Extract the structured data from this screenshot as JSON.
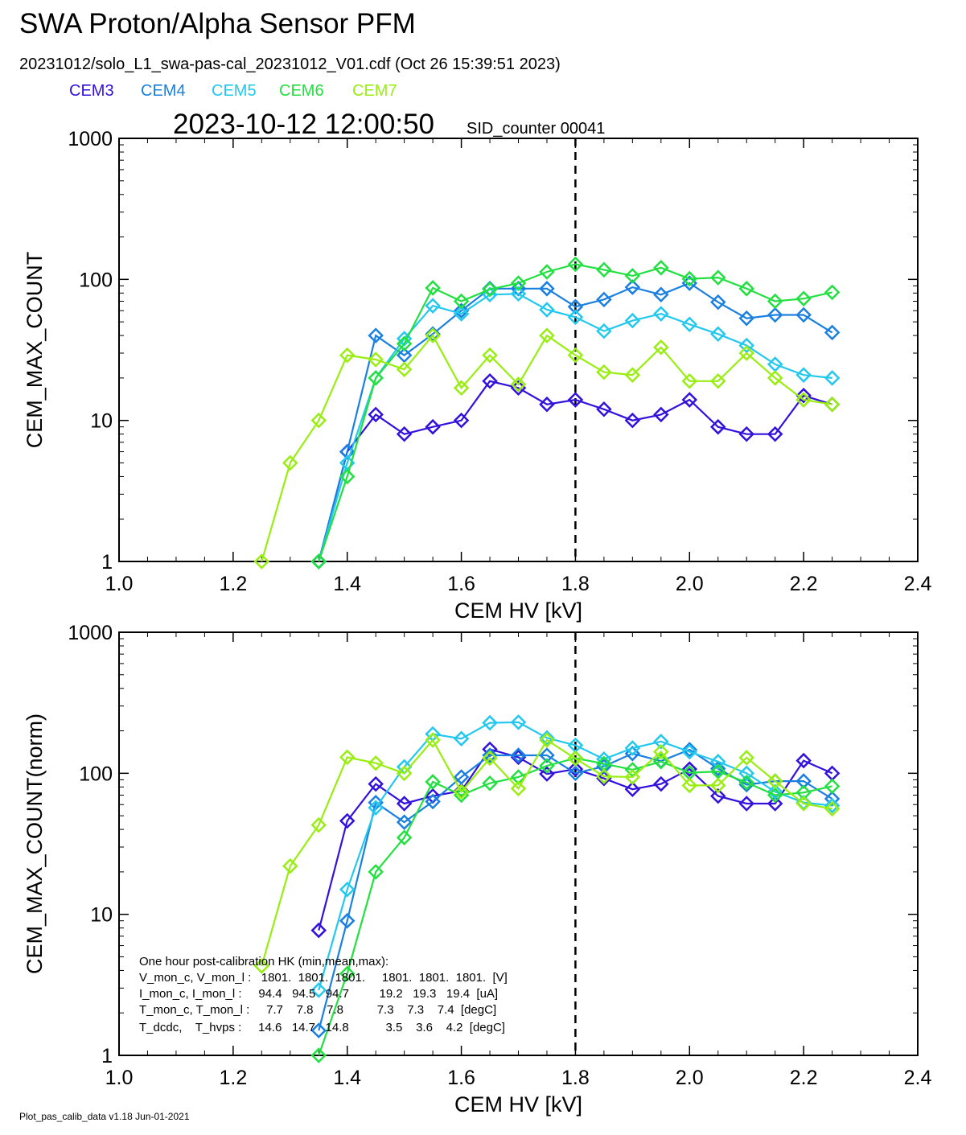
{
  "header": {
    "title": "SWA Proton/Alpha Sensor PFM",
    "file_line": "20231012/solo_L1_swa-pas-cal_20231012_V01.cdf  (Oct 26 15:39:51 2023)",
    "timestamp": "2023-10-12 12:00:50",
    "sid_counter": "SID_counter 00041",
    "legend": [
      {
        "name": "CEM3",
        "color": "#3311dd"
      },
      {
        "name": "CEM4",
        "color": "#1a80e0"
      },
      {
        "name": "CEM5",
        "color": "#22c8ee"
      },
      {
        "name": "CEM6",
        "color": "#22e040"
      },
      {
        "name": "CEM7",
        "color": "#99ee11"
      }
    ]
  },
  "footer": {
    "version": "Plot_pas_calib_data v1.18 Jun-01-2021"
  },
  "hk_box": {
    "lines": [
      "One hour post-calibration HK (min,mean,max):",
      "V_mon_c, V_mon_l :   1801.  1801.  1801.     1801.  1801.  1801.  [V]",
      "I_mon_c, I_mon_l :     94.4   94.5   94.7         19.2   19.3   19.4  [uA]",
      "T_mon_c, T_mon_l :     7.7    7.8    7.8          7.3    7.3    7.4  [degC]",
      "T_dcdc,    T_hvps :     14.6   14.7   14.8           3.5    3.6    4.2  [degC]"
    ]
  },
  "chart_data": [
    {
      "type": "line",
      "xlabel": "CEM HV [kV]",
      "ylabel": "CEM_MAX_COUNT",
      "xlim": [
        1.0,
        2.4
      ],
      "ylim": [
        1,
        1000
      ],
      "yscale": "log",
      "xticks": [
        "1.0",
        "1.2",
        "1.4",
        "1.6",
        "1.8",
        "2.0",
        "2.2",
        "2.4"
      ],
      "yticks": [
        "1",
        "10",
        "100",
        "1000"
      ],
      "vline": 1.8,
      "x": [
        1.25,
        1.3,
        1.35,
        1.4,
        1.45,
        1.5,
        1.55,
        1.6,
        1.65,
        1.7,
        1.75,
        1.8,
        1.85,
        1.9,
        1.95,
        2.0,
        2.05,
        2.1,
        2.15,
        2.2,
        2.25
      ],
      "series": [
        {
          "name": "CEM3",
          "values": [
            null,
            null,
            1,
            6,
            11,
            8,
            9,
            10,
            19,
            17,
            13,
            14,
            12,
            10,
            11,
            14,
            9,
            8,
            8,
            15,
            13
          ]
        },
        {
          "name": "CEM4",
          "values": [
            null,
            null,
            1,
            6,
            40,
            29,
            41,
            60,
            86,
            86,
            86,
            64,
            72,
            88,
            78,
            94,
            69,
            53,
            56,
            56,
            42
          ]
        },
        {
          "name": "CEM5",
          "values": [
            null,
            null,
            1,
            5,
            20,
            38,
            65,
            57,
            78,
            79,
            61,
            54,
            43,
            51,
            57,
            48,
            41,
            34,
            25,
            21,
            20
          ]
        },
        {
          "name": "CEM6",
          "values": [
            null,
            null,
            1,
            4,
            20,
            35,
            87,
            70,
            85,
            94,
            113,
            128,
            117,
            106,
            121,
            101,
            103,
            86,
            70,
            73,
            81
          ]
        },
        {
          "name": "CEM7",
          "values": [
            1,
            5,
            10,
            29,
            27,
            23,
            40,
            17,
            29,
            18,
            40,
            29,
            22,
            21,
            33,
            19,
            19,
            30,
            20,
            14,
            13
          ]
        }
      ]
    },
    {
      "type": "line",
      "xlabel": "CEM HV [kV]",
      "ylabel": "CEM_MAX_COUNT(norm)",
      "xlim": [
        1.0,
        2.4
      ],
      "ylim": [
        1,
        1000
      ],
      "yscale": "log",
      "xticks": [
        "1.0",
        "1.2",
        "1.4",
        "1.6",
        "1.8",
        "2.0",
        "2.2",
        "2.4"
      ],
      "yticks": [
        "1",
        "10",
        "100",
        "1000"
      ],
      "vline": 1.8,
      "x": [
        1.25,
        1.3,
        1.35,
        1.4,
        1.45,
        1.5,
        1.55,
        1.6,
        1.65,
        1.7,
        1.75,
        1.8,
        1.85,
        1.9,
        1.95,
        2.0,
        2.05,
        2.1,
        2.15,
        2.2,
        2.25
      ],
      "series": [
        {
          "name": "CEM3",
          "values": [
            null,
            null,
            7.7,
            46,
            84,
            61,
            69,
            75,
            148,
            130,
            99,
            107,
            92,
            77,
            84,
            107,
            69,
            61,
            61,
            123,
            100
          ]
        },
        {
          "name": "CEM4",
          "values": [
            null,
            null,
            1.5,
            9,
            62,
            45,
            63,
            94,
            134,
            134,
            134,
            100,
            112,
            138,
            122,
            147,
            108,
            83,
            88,
            88,
            66
          ]
        },
        {
          "name": "CEM5",
          "values": [
            null,
            null,
            2.9,
            15,
            57,
            111,
            190,
            176,
            228,
            230,
            178,
            158,
            126,
            151,
            168,
            142,
            121,
            100,
            74,
            62,
            59
          ]
        },
        {
          "name": "CEM6",
          "values": [
            null,
            null,
            1,
            3.8,
            20,
            35,
            87,
            70,
            85,
            94,
            113,
            128,
            117,
            106,
            121,
            101,
            103,
            86,
            70,
            73,
            81
          ]
        },
        {
          "name": "CEM7",
          "values": [
            4.3,
            22,
            43,
            130,
            118,
            100,
            172,
            74,
            128,
            78,
            172,
            127,
            95,
            94,
            142,
            82,
            82,
            129,
            88,
            61,
            56
          ]
        }
      ]
    }
  ]
}
